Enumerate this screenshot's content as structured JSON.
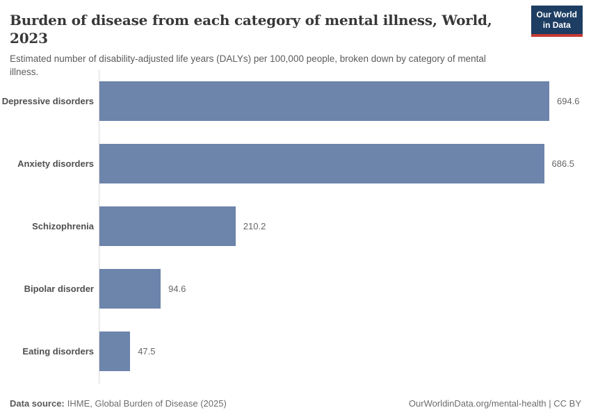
{
  "header": {
    "title": "Burden of disease from each category of mental illness, World, 2023",
    "subtitle": "Estimated number of disability-adjusted life years (DALYs) per 100,000 people, broken down by category of mental illness.",
    "logo": {
      "line1": "Our World",
      "line2": "in Data",
      "bg_color": "#1d3d63",
      "accent_color": "#c43b33"
    }
  },
  "chart_data": {
    "type": "bar",
    "orientation": "horizontal",
    "title": "Burden of disease from each category of mental illness, World, 2023",
    "xlabel": "",
    "ylabel": "",
    "categories": [
      "Depressive disorders",
      "Anxiety disorders",
      "Schizophrenia",
      "Bipolar disorder",
      "Eating disorders"
    ],
    "values": [
      694.6,
      686.5,
      210.2,
      94.6,
      47.5
    ],
    "value_labels": [
      "694.6",
      "686.5",
      "210.2",
      "94.6",
      "47.5"
    ],
    "xlim": [
      0,
      745
    ],
    "grid": false,
    "legend": "none",
    "bar_color": "#6d84ab"
  },
  "footer": {
    "datasource_label": "Data source:",
    "datasource_value": "IHME, Global Burden of Disease (2025)",
    "attribution": "OurWorldinData.org/mental-health | CC BY"
  }
}
